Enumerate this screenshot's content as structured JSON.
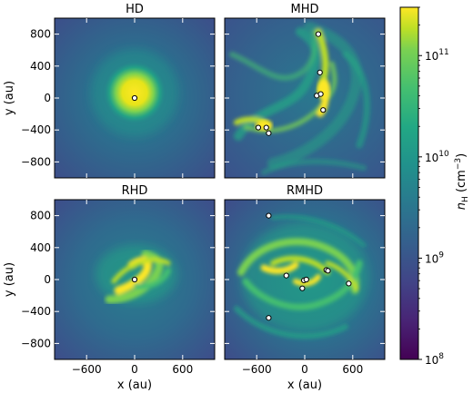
{
  "chart_data": [
    {
      "type": "heatmap",
      "title": "HD",
      "xlim": [
        -1000,
        1000
      ],
      "ylim": [
        -1000,
        1000
      ],
      "x_ticks": [
        "-600",
        "0",
        "600"
      ],
      "y_ticks": [
        "800",
        "400",
        "0",
        "-400",
        "-800"
      ],
      "xlabel": "",
      "ylabel": "y (au)",
      "structure": "central dense core",
      "sinks": [
        {
          "x": 0,
          "y": 0
        }
      ]
    },
    {
      "type": "heatmap",
      "title": "MHD",
      "xlim": [
        -1000,
        1000
      ],
      "ylim": [
        -1000,
        1000
      ],
      "x_ticks": [
        "-600",
        "0",
        "600"
      ],
      "y_ticks": [
        "800",
        "400",
        "0",
        "-400",
        "-800"
      ],
      "xlabel": "",
      "ylabel": "",
      "structure": "spiral filaments",
      "sinks": [
        {
          "x": 170,
          "y": 800
        },
        {
          "x": 190,
          "y": 320
        },
        {
          "x": 150,
          "y": 30
        },
        {
          "x": 200,
          "y": 50
        },
        {
          "x": 230,
          "y": -150
        },
        {
          "x": -580,
          "y": -370
        },
        {
          "x": -480,
          "y": -370
        },
        {
          "x": -450,
          "y": -440
        }
      ]
    },
    {
      "type": "heatmap",
      "title": "RHD",
      "xlim": [
        -1000,
        1000
      ],
      "ylim": [
        -1000,
        1000
      ],
      "x_ticks": [
        "-600",
        "0",
        "600"
      ],
      "y_ticks": [
        "800",
        "400",
        "0",
        "-400",
        "-800"
      ],
      "xlabel": "x (au)",
      "ylabel": "y (au)",
      "structure": "spiral disk",
      "sinks": [
        {
          "x": 0,
          "y": 0
        }
      ]
    },
    {
      "type": "heatmap",
      "title": "RMHD",
      "xlim": [
        -1000,
        1000
      ],
      "ylim": [
        -1000,
        1000
      ],
      "x_ticks": [
        "-600",
        "0",
        "600"
      ],
      "y_ticks": [
        "800",
        "400",
        "0",
        "-400",
        "-800"
      ],
      "xlabel": "x (au)",
      "ylabel": "",
      "structure": "filamentary spiral arms",
      "sinks": [
        {
          "x": -450,
          "y": 800
        },
        {
          "x": -450,
          "y": -480
        },
        {
          "x": -230,
          "y": 50
        },
        {
          "x": -30,
          "y": -110
        },
        {
          "x": -10,
          "y": -10
        },
        {
          "x": 20,
          "y": 0
        },
        {
          "x": 270,
          "y": 120
        },
        {
          "x": 290,
          "y": 110
        },
        {
          "x": 550,
          "y": -50
        }
      ]
    }
  ],
  "colorbar": {
    "colormap": "viridis",
    "scale": "log",
    "range": [
      100000000,
      300000000000
    ],
    "ticks": [
      {
        "base": "10",
        "exp": "8",
        "value": 100000000
      },
      {
        "base": "10",
        "exp": "9",
        "value": 1000000000
      },
      {
        "base": "10",
        "exp": "10",
        "value": 10000000000
      },
      {
        "base": "10",
        "exp": "11",
        "value": 100000000000
      }
    ],
    "label": {
      "symbol": "n",
      "subscript": "H",
      "unit_open": " (cm",
      "unit_exp": "−3",
      "unit_close": ")"
    }
  }
}
